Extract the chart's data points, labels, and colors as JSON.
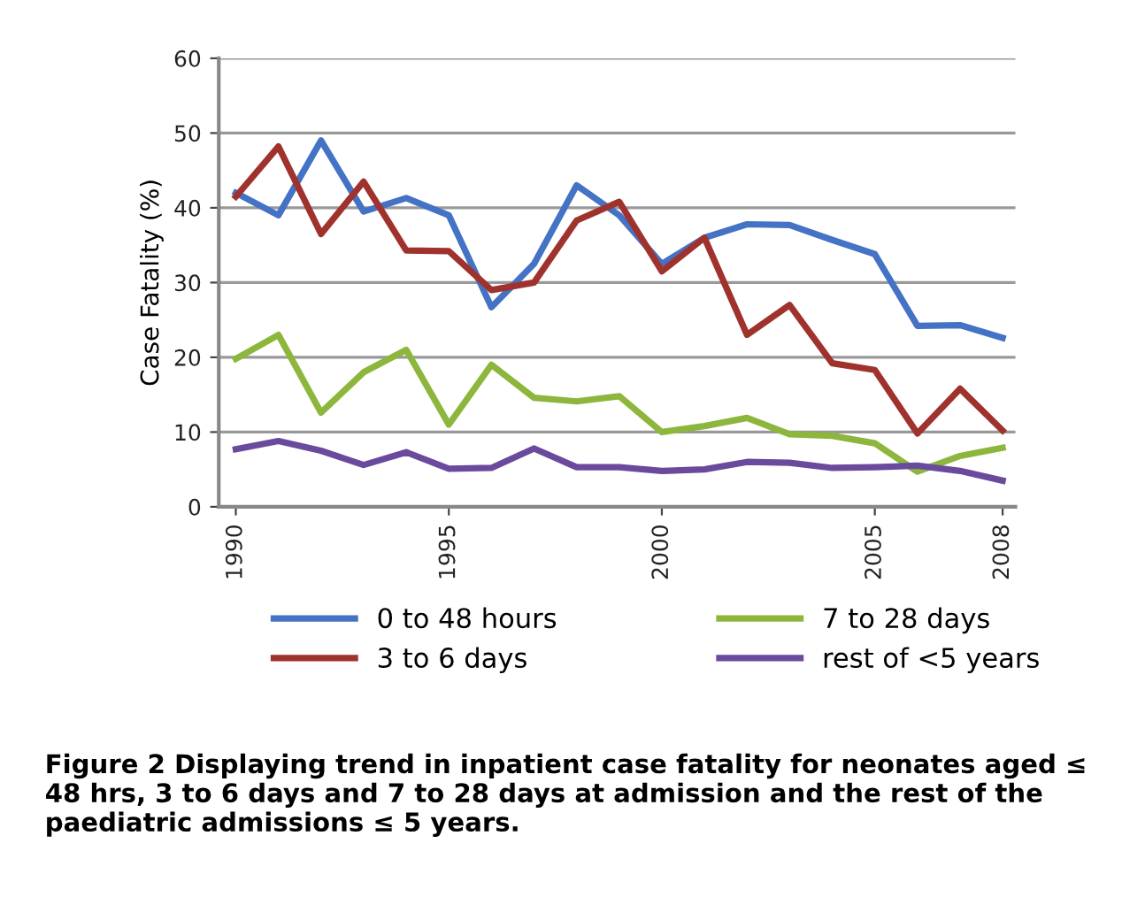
{
  "chart_data": {
    "type": "line",
    "ylabel": "Case Fatality (%)",
    "x": [
      1990,
      1991,
      1992,
      1993,
      1994,
      1995,
      1996,
      1997,
      1998,
      1999,
      2000,
      2001,
      2002,
      2003,
      2004,
      2005,
      2006,
      2007,
      2008
    ],
    "series": [
      {
        "name": "0 to 48 hours",
        "color": "#4472c4",
        "values": [
          42,
          39,
          49,
          39.5,
          41.3,
          39,
          26.7,
          32.5,
          43,
          39,
          32.5,
          36,
          37.8,
          37.7,
          35.7,
          33.8,
          24.2,
          24.3,
          22.6
        ]
      },
      {
        "name": "3 to 6 days",
        "color": "#a0322e",
        "values": [
          41.5,
          48.2,
          36.5,
          43.5,
          34.3,
          34.2,
          29,
          30,
          38.3,
          40.8,
          31.5,
          36,
          23,
          27,
          19.2,
          18.3,
          9.8,
          15.8,
          10.2
        ]
      },
      {
        "name": "7 to 28 days",
        "color": "#8cb63c",
        "values": [
          19.8,
          23,
          12.6,
          18,
          21,
          11,
          19,
          14.6,
          14.1,
          14.8,
          10,
          10.8,
          11.9,
          9.7,
          9.5,
          8.5,
          4.7,
          6.8,
          7.9
        ]
      },
      {
        "name": "rest of <5 years",
        "color": "#6a4a9c",
        "values": [
          7.7,
          8.8,
          7.5,
          5.6,
          7.3,
          5.1,
          5.2,
          7.8,
          5.3,
          5.3,
          4.8,
          5,
          6,
          5.9,
          5.2,
          5.3,
          5.5,
          4.8,
          3.5
        ]
      }
    ],
    "xlim": [
      1989.6,
      2008.3
    ],
    "xticks": [
      1990,
      1995,
      2000,
      2005,
      2008
    ],
    "ylim": [
      0,
      60
    ],
    "yticks": [
      0,
      10,
      20,
      30,
      40,
      50,
      60
    ],
    "grid": "y",
    "legend": "bottom",
    "marker": "none",
    "line_style": "solid",
    "annotations": [
      "Figure 2 Displaying trend in inpatient case fatality for neonates aged ≤ 48 hrs, 3 to 6 days and 7 to 28 days at admission and the rest of the paediatric admissions ≤ 5 years."
    ]
  }
}
